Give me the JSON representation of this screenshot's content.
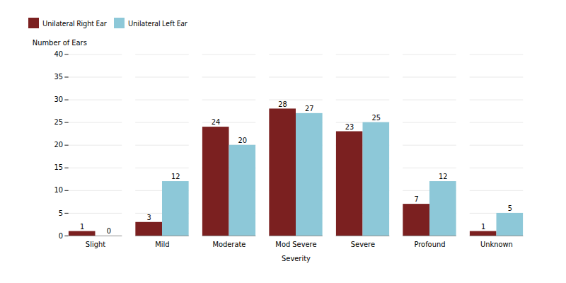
{
  "chart_data": {
    "type": "bar",
    "categories": [
      "Slight",
      "Mild",
      "Moderate",
      "Mod Severe",
      "Severe",
      "Profound",
      "Unknown"
    ],
    "series": [
      {
        "name": "Unilateral Right Ear",
        "color": "#7B2020",
        "values": [
          1,
          3,
          24,
          28,
          23,
          7,
          1
        ]
      },
      {
        "name": "Unilateral Left Ear",
        "color": "#8DC8D8",
        "values": [
          0,
          12,
          20,
          27,
          25,
          12,
          5
        ]
      }
    ],
    "xlabel": "Severity",
    "ylabel": "Number of Ears",
    "ylim": [
      0,
      40
    ],
    "yticks": [
      0,
      5,
      10,
      15,
      20,
      25,
      30,
      35,
      40
    ],
    "grid": true,
    "data_labels": true,
    "legend": "top"
  }
}
